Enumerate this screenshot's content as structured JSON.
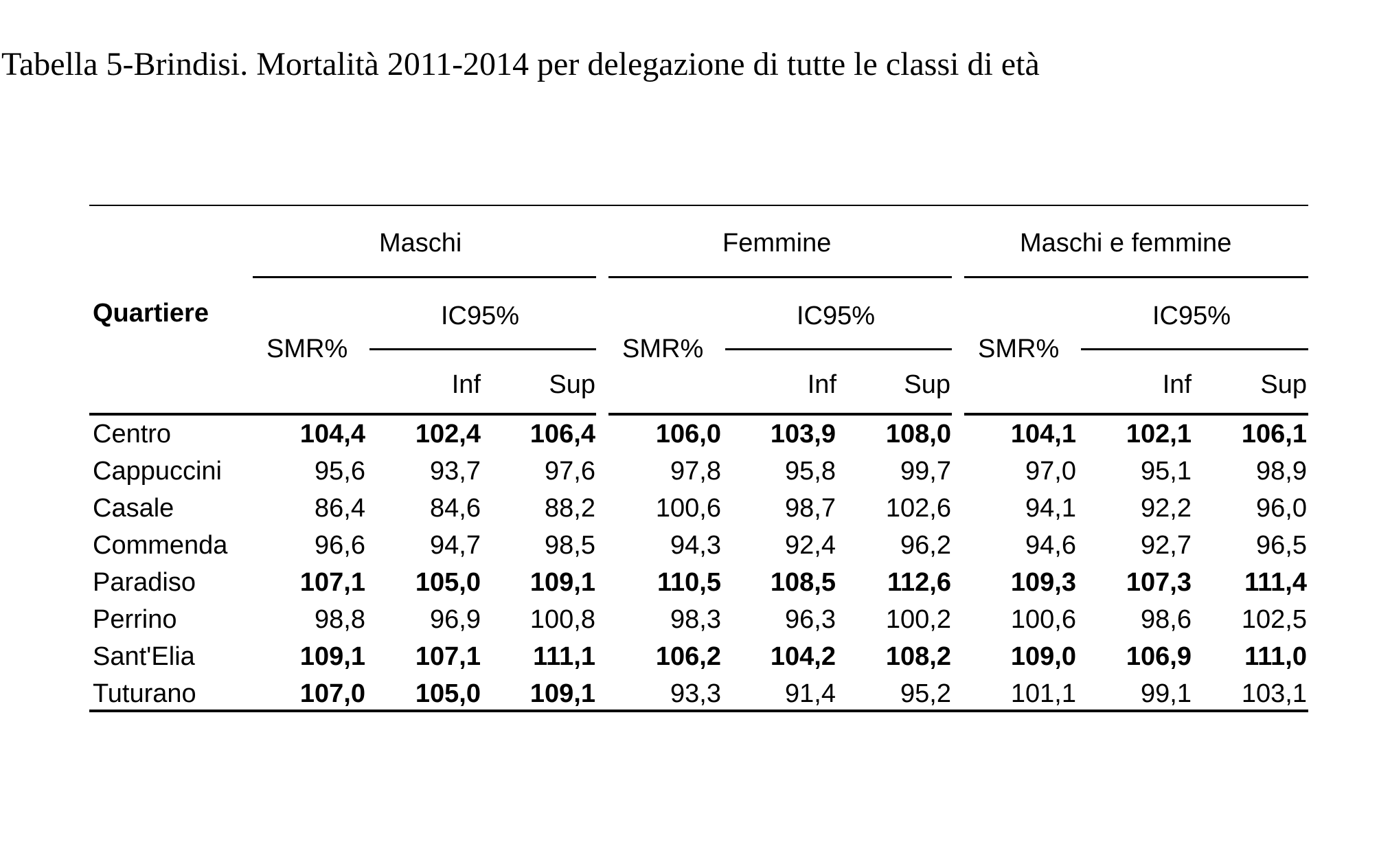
{
  "caption": "Tabella 5-Brindisi. Mortalità 2011-2014 per delegazione di tutte le classi di età",
  "header": {
    "row_label": "Quartiere",
    "groups": [
      "Maschi",
      "Femmine",
      "Maschi e femmine"
    ],
    "smr_label": "SMR%",
    "ci_label": "IC95%",
    "inf_label": "Inf",
    "sup_label": "Sup"
  },
  "rows": [
    {
      "name": "Centro",
      "bold": true,
      "values": [
        "104,4",
        "102,4",
        "106,4",
        "106,0",
        "103,9",
        "108,0",
        "104,1",
        "102,1",
        "106,1"
      ],
      "bold_groups": [
        true,
        true,
        true
      ]
    },
    {
      "name": "Cappuccini",
      "bold": false,
      "values": [
        "95,6",
        "93,7",
        "97,6",
        "97,8",
        "95,8",
        "99,7",
        "97,0",
        "95,1",
        "98,9"
      ],
      "bold_groups": [
        false,
        false,
        false
      ]
    },
    {
      "name": "Casale",
      "bold": false,
      "values": [
        "86,4",
        "84,6",
        "88,2",
        "100,6",
        "98,7",
        "102,6",
        "94,1",
        "92,2",
        "96,0"
      ],
      "bold_groups": [
        false,
        false,
        false
      ]
    },
    {
      "name": "Commenda",
      "bold": false,
      "values": [
        "96,6",
        "94,7",
        "98,5",
        "94,3",
        "92,4",
        "96,2",
        "94,6",
        "92,7",
        "96,5"
      ],
      "bold_groups": [
        false,
        false,
        false
      ]
    },
    {
      "name": "Paradiso",
      "bold": true,
      "values": [
        "107,1",
        "105,0",
        "109,1",
        "110,5",
        "108,5",
        "112,6",
        "109,3",
        "107,3",
        "111,4"
      ],
      "bold_groups": [
        true,
        true,
        true
      ]
    },
    {
      "name": "Perrino",
      "bold": false,
      "values": [
        "98,8",
        "96,9",
        "100,8",
        "98,3",
        "96,3",
        "100,2",
        "100,6",
        "98,6",
        "102,5"
      ],
      "bold_groups": [
        false,
        false,
        false
      ]
    },
    {
      "name": "Sant'Elia",
      "bold": true,
      "values": [
        "109,1",
        "107,1",
        "111,1",
        "106,2",
        "104,2",
        "108,2",
        "109,0",
        "106,9",
        "111,0"
      ],
      "bold_groups": [
        true,
        true,
        true
      ]
    },
    {
      "name": "Tuturano",
      "bold": false,
      "values": [
        "107,0",
        "105,0",
        "109,1",
        "93,3",
        "91,4",
        "95,2",
        "101,1",
        "99,1",
        "103,1"
      ],
      "bold_groups": [
        true,
        false,
        false
      ]
    }
  ]
}
